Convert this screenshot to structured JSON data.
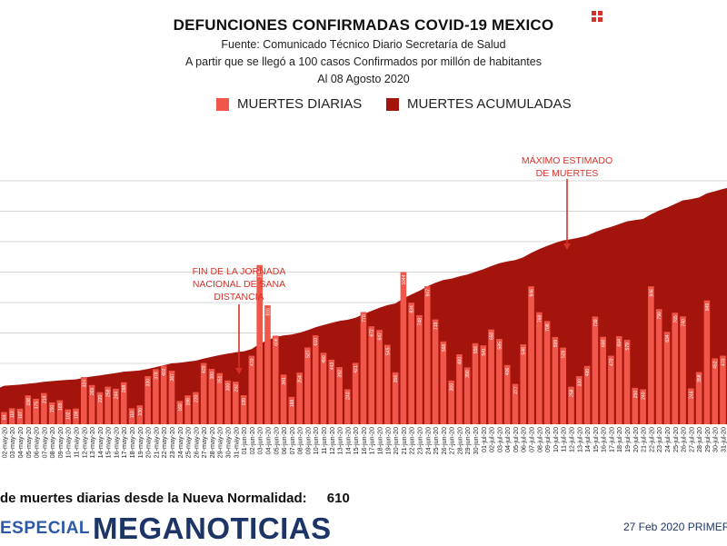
{
  "header": {
    "title": "DEFUNCIONES CONFIRMADAS COVID-19 MEXICO",
    "source": "Fuente: Comunicado Técnico Diario Secretaría de Salud",
    "note": "A partir que se llegó a 100 casos Confirmados por millón de habitantes",
    "as_of": "Al 08 Agosto 2020",
    "menu_icon": "grid-menu-icon"
  },
  "colors": {
    "daily": "#f0574a",
    "cumulative": "#a3140d",
    "accent": "#d7322a",
    "brand_dark": "#1d3566",
    "brand_blue": "#2a5aa8"
  },
  "chart_data": {
    "type": "bar",
    "title": "DEFUNCIONES CONFIRMADAS COVID-19 MEXICO",
    "legend": [
      "MUERTES DIARIAS",
      "MUERTES ACUMULADAS"
    ],
    "legend_position": "top-center",
    "grid": true,
    "categories": [
      "02-may-20",
      "03-may-20",
      "04-may-20",
      "05-may-20",
      "06-may-20",
      "07-may-20",
      "08-may-20",
      "09-may-20",
      "10-may-20",
      "11-may-20",
      "12-may-20",
      "13-may-20",
      "14-may-20",
      "15-may-20",
      "16-may-20",
      "17-may-20",
      "18-may-20",
      "19-may-20",
      "20-may-20",
      "21-may-20",
      "22-may-20",
      "23-may-20",
      "24-may-20",
      "25-may-20",
      "26-may-20",
      "27-may-20",
      "28-may-20",
      "29-may-20",
      "30-may-20",
      "31-may-20",
      "01-jun-20",
      "02-jun-20",
      "03-jun-20",
      "04-jun-20",
      "05-jun-20",
      "06-jun-20",
      "07-jun-20",
      "08-jun-20",
      "09-jun-20",
      "10-jun-20",
      "11-jun-20",
      "12-jun-20",
      "13-jun-20",
      "14-jun-20",
      "15-jun-20",
      "16-jun-20",
      "17-jun-20",
      "18-jun-20",
      "19-jun-20",
      "20-jun-20",
      "21-jun-20",
      "22-jun-20",
      "23-jun-20",
      "24-jun-20",
      "25-jun-20",
      "26-jun-20",
      "27-jun-20",
      "28-jun-20",
      "29-jun-20",
      "30-jun-20",
      "01-jul-20",
      "02-jul-20",
      "03-jul-20",
      "04-jul-20",
      "05-jul-20",
      "06-jul-20",
      "07-jul-20",
      "08-jul-20",
      "09-jul-20",
      "10-jul-20",
      "11-jul-20",
      "12-jul-20",
      "13-jul-20",
      "14-jul-20",
      "15-jul-20",
      "16-jul-20",
      "17-jul-20",
      "18-jul-20",
      "19-jul-20",
      "20-jul-20",
      "21-jul-20",
      "22-jul-20",
      "23-jul-20",
      "24-jul-20",
      "25-jul-20",
      "26-jul-20",
      "27-jul-20",
      "28-jul-20",
      "29-jul-20",
      "30-jul-20",
      "31-jul-20"
    ],
    "series": [
      {
        "name": "MUERTES DIARIAS",
        "values": [
          84,
          110,
          107,
          198,
          175,
          214,
          150,
          165,
          102,
          108,
          324,
          269,
          220,
          258,
          244,
          288,
          110,
          130,
          330,
          378,
          402,
          367,
          160,
          198,
          220,
          420,
          380,
          351,
          300,
          292,
          199,
          470,
          1092,
          816,
          608,
          341,
          188,
          354,
          527,
          610,
          490,
          443,
          392,
          240,
          421,
          770,
          672,
          647,
          545,
          356,
          1044,
          834,
          748,
          947,
          719,
          568,
          300,
          480,
          390,
          556,
          541,
          650,
          585,
          406,
          277,
          548,
          946,
          768,
          708,
          599,
          526,
          258,
          330,
          400,
          739,
          600,
          470,
          604,
          579,
          250,
          240,
          946,
          790,
          634,
          765,
          740,
          246,
          358,
          849,
          452,
          470
        ]
      },
      {
        "name": "MUERTES ACUMULADAS",
        "type": "area"
      }
    ],
    "xlabel": "",
    "ylabel": "",
    "ylim_daily": [
      0,
      2100
    ],
    "annotations": [
      {
        "text": "FIN DE LA JORNADA NACIONAL DE SANA DISTANCIA",
        "x": "31-may-20"
      },
      {
        "text": "MÁXIMO ESTIMADO DE MUERTES",
        "x": "11-jul-20"
      }
    ]
  },
  "annotations_text": {
    "sana_distancia": [
      "FIN DE LA JORNADA",
      "NACIONAL DE SANA",
      "DISTANCIA"
    ],
    "maximo": [
      "MÁXIMO ESTIMADO",
      "DE MUERTES"
    ]
  },
  "footer": {
    "label": "de muertes diarias desde la Nueva Normalidad:",
    "value": "610",
    "brand_especial": "ESPECIAL",
    "brand_name": "MEGANOTICIAS",
    "date": "27 Feb 2020 PRIMER"
  }
}
